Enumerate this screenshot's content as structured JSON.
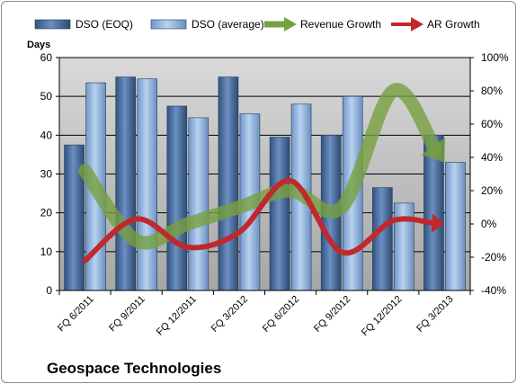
{
  "chart_data": {
    "type": "bar",
    "categories": [
      "FQ 6/2011",
      "FQ 9/2011",
      "FQ 12/2011",
      "FQ 3/2012",
      "FQ 6/2012",
      "FQ 9/2012",
      "FQ 12/2012",
      "FQ 3/2013"
    ],
    "series": [
      {
        "name": "DSO (EOQ)",
        "kind": "bar",
        "axis": "left",
        "color": "#4a6fa5",
        "values": [
          37.5,
          55,
          47.5,
          55,
          39.5,
          40,
          26.5,
          40
        ]
      },
      {
        "name": "DSO (average)",
        "kind": "bar",
        "axis": "left",
        "color": "#8fb4e3",
        "values": [
          53.5,
          54.5,
          44.5,
          45.5,
          48,
          50,
          22.5,
          33
        ]
      },
      {
        "name": "Revenue Growth",
        "kind": "arrow-line",
        "axis": "right",
        "color": "#77a040",
        "values": [
          0.32,
          -0.1,
          0.0,
          0.1,
          0.2,
          0.1,
          0.8,
          0.37
        ]
      },
      {
        "name": "AR Growth",
        "kind": "arrow-line",
        "axis": "right",
        "color": "#c0282d",
        "values": [
          -0.22,
          0.03,
          -0.14,
          -0.05,
          0.26,
          -0.17,
          0.02,
          0.0
        ]
      }
    ],
    "ylabel": "Days",
    "ylim": [
      0,
      60
    ],
    "yticks": [
      "0",
      "10",
      "20",
      "30",
      "40",
      "50",
      "60"
    ],
    "y2lim": [
      -0.4,
      1.0
    ],
    "y2ticks": [
      "-40%",
      "-20%",
      "0%",
      "20%",
      "40%",
      "60%",
      "80%",
      "100%"
    ],
    "grid": true,
    "legend": "top"
  },
  "footer": {
    "title": "Geospace Technologies"
  }
}
